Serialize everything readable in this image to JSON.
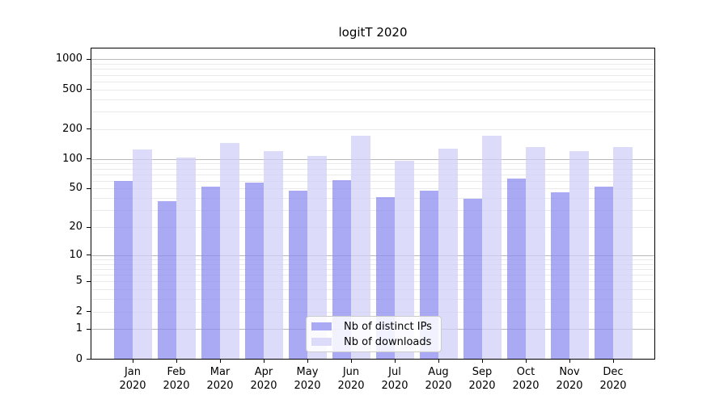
{
  "chart_data": {
    "type": "bar",
    "title": "logitT 2020",
    "categories": [
      "Jan",
      "Feb",
      "Mar",
      "Apr",
      "May",
      "Jun",
      "Jul",
      "Aug",
      "Sep",
      "Oct",
      "Nov",
      "Dec"
    ],
    "category_year": "2020",
    "series": [
      {
        "name": "Nb of distinct IPs",
        "key": "distinct-ips",
        "color": "#a9a9f4",
        "fill_rgba": "rgba(136,136,240,0.72)",
        "values": [
          60,
          37,
          52,
          57,
          48,
          61,
          41,
          48,
          39,
          63,
          46,
          52
        ]
      },
      {
        "name": "Nb of downloads",
        "key": "downloads",
        "color": "#dcdcfa",
        "fill_rgba": "rgba(206,206,248,0.72)",
        "values": [
          125,
          104,
          144,
          119,
          108,
          171,
          96,
          128,
          171,
          132,
          120,
          131
        ]
      }
    ],
    "y_axis": {
      "scale": "log1p",
      "tick_values": [
        1000,
        500,
        200,
        100,
        50,
        20,
        10,
        5,
        2,
        1,
        0
      ],
      "major_gridlines": [
        1,
        10,
        100,
        1000
      ],
      "minor_gridlines": [
        2,
        3,
        4,
        5,
        6,
        7,
        8,
        9,
        20,
        30,
        40,
        50,
        60,
        70,
        80,
        90,
        200,
        300,
        400,
        500,
        600,
        700,
        800,
        900
      ]
    },
    "x_axis": {
      "tick_labels": [
        "Jan 2020",
        "Feb 2020",
        "Mar 2020",
        "Apr 2020",
        "May 2020",
        "Jun 2020",
        "Jul 2020",
        "Aug 2020",
        "Sep 2020",
        "Oct 2020",
        "Nov 2020",
        "Dec 2020"
      ]
    },
    "legend": {
      "entries": [
        "Nb of distinct IPs",
        "Nb of downloads"
      ],
      "position": "lower-center"
    }
  },
  "colors": {
    "bar_dark": "#a9a9f4",
    "bar_light": "#dcdcfa",
    "grid_major": "#b9b9b9",
    "grid_minor": "#eaeaea",
    "spine": "#000000",
    "legend_border": "#cccccc",
    "background": "#ffffff"
  }
}
